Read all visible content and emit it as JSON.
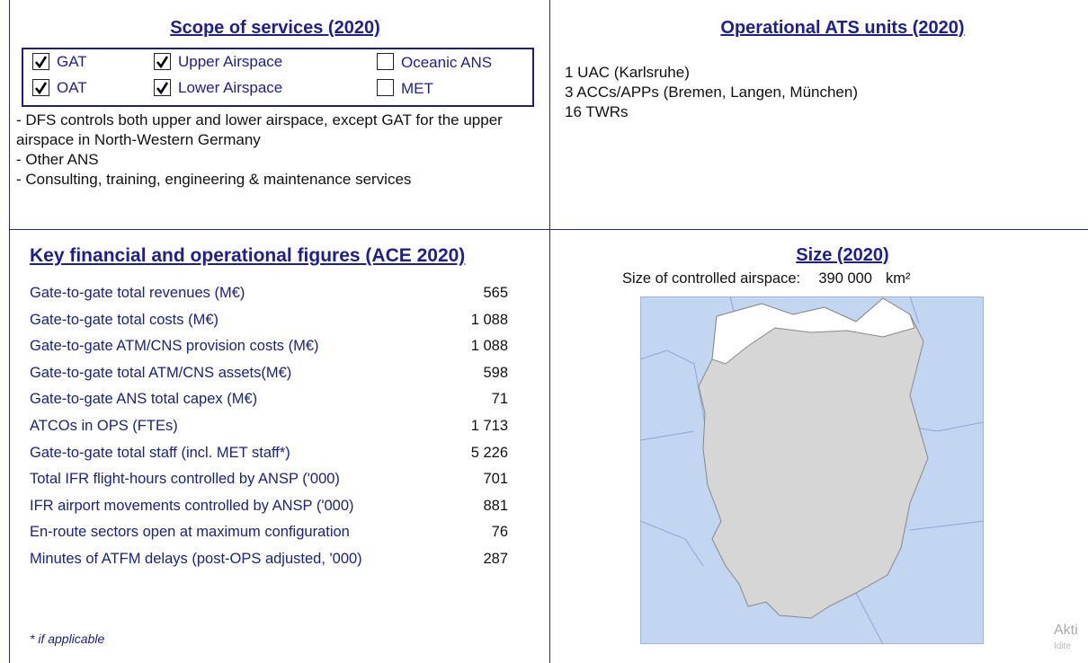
{
  "scope": {
    "title": "Scope of services (2020)",
    "checkboxes": [
      {
        "label": "GAT",
        "checked": true
      },
      {
        "label": "Upper Airspace",
        "checked": true
      },
      {
        "label": "Oceanic ANS",
        "checked": false
      },
      {
        "label": "OAT",
        "checked": true
      },
      {
        "label": "Lower Airspace",
        "checked": true
      },
      {
        "label": "MET",
        "checked": false
      }
    ],
    "notes": [
      "- DFS controls both upper and lower airspace, except GAT for the upper airspace in North-Western Germany",
      "- Other ANS",
      "- Consulting, training, engineering & maintenance services"
    ]
  },
  "units": {
    "title": "Operational ATS units (2020)",
    "lines": [
      "1 UAC (Karlsruhe)",
      "3 ACCs/APPs (Bremen, Langen, München)",
      "16 TWRs"
    ]
  },
  "figures": {
    "title": "Key financial and operational figures (ACE 2020)",
    "rows": [
      [
        "Gate-to-gate total revenues (M€)",
        "565"
      ],
      [
        "Gate-to-gate total costs (M€)",
        "1 088"
      ],
      [
        "Gate-to-gate ATM/CNS provision costs (M€)",
        "1 088"
      ],
      [
        "Gate-to-gate  total ATM/CNS assets(M€)",
        "598"
      ],
      [
        "Gate-to-gate ANS total capex (M€)",
        "71"
      ],
      [
        "ATCOs in OPS (FTEs)",
        "1 713"
      ],
      [
        "Gate-to-gate total staff (incl. MET staff*)",
        "5 226"
      ],
      [
        "Total IFR flight-hours controlled by ANSP ('000)",
        "701"
      ],
      [
        "IFR airport movements controlled by ANSP ('000)",
        "881"
      ],
      [
        "En-route sectors open at maximum configuration",
        "76"
      ],
      [
        "Minutes of ATFM delays (post-OPS adjusted, '000)",
        "287"
      ]
    ],
    "footnote": "* if applicable"
  },
  "size": {
    "title": "Size (2020)",
    "label": "Size of controlled airspace:",
    "value": "390 000",
    "unit": "km²"
  },
  "watermark": [
    "Akti",
    "Idite"
  ]
}
